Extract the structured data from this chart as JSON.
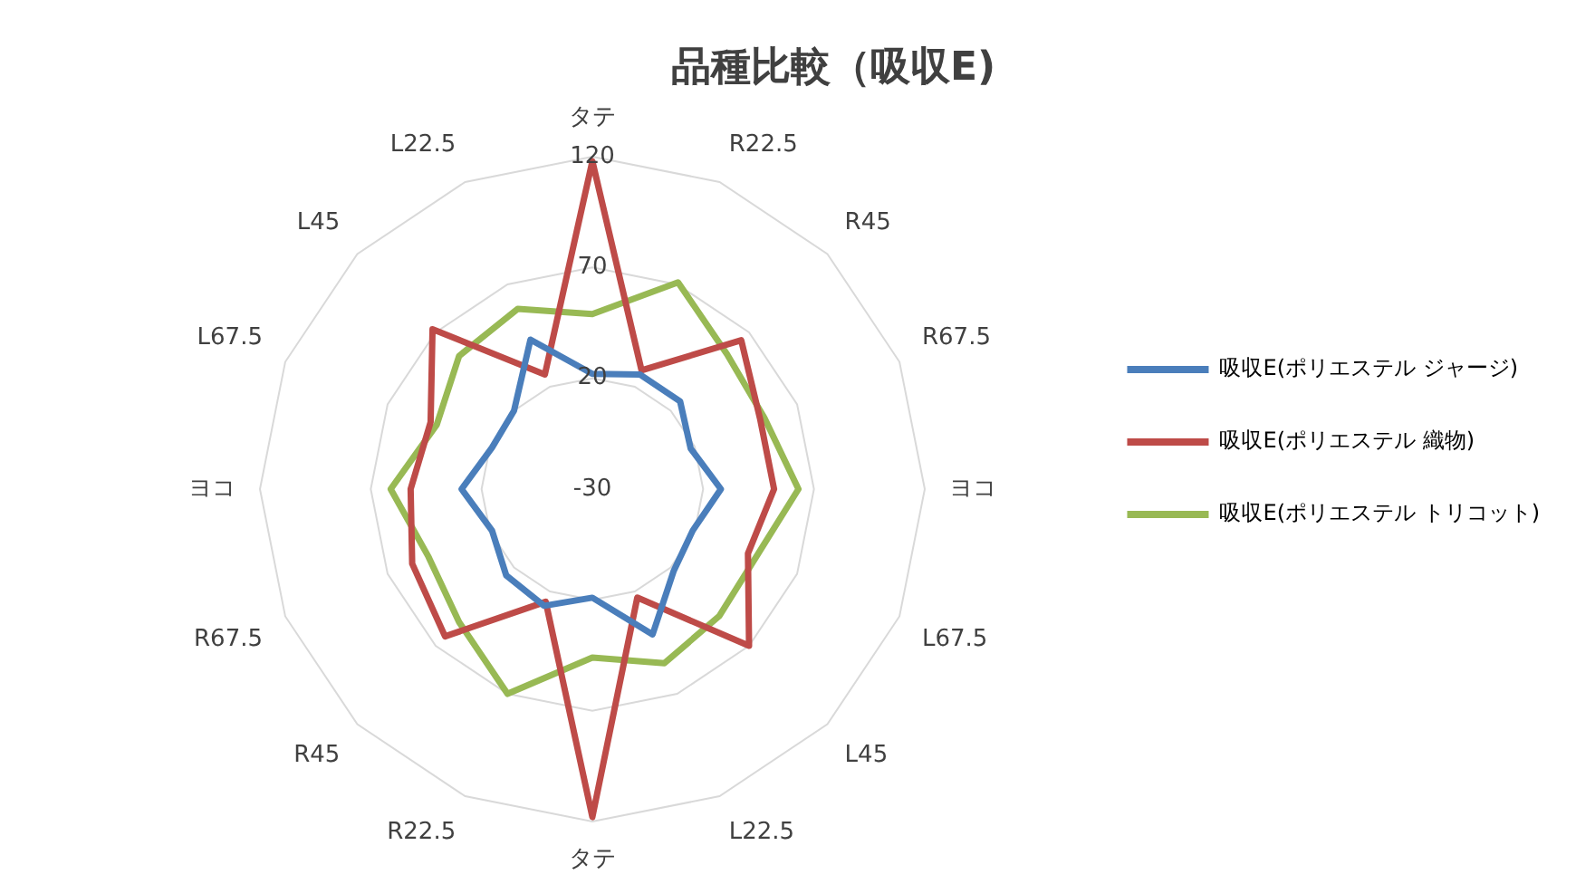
{
  "chart_data": {
    "type": "radar",
    "title": "品種比較（吸収E)",
    "categories": [
      "タテ",
      "R22.5",
      "R45",
      "R67.5",
      "ヨコ",
      "L67.5",
      "L45",
      "L22.5",
      "タテ",
      "R22.5",
      "R45",
      "R67.5",
      "ヨコ",
      "L67.5",
      "L45",
      "L22.5"
    ],
    "ylim": [
      -30,
      120
    ],
    "yticks": [
      -30,
      20,
      70,
      120
    ],
    "grid": true,
    "legend": "right",
    "marker": "none",
    "series": [
      {
        "name": "吸収E(ポリエステル ジャージ)",
        "color": "#4a7ebb",
        "values": [
          22,
          26,
          26,
          18,
          28,
          19,
          22,
          41,
          19,
          27,
          25,
          19,
          29,
          19,
          20,
          43
        ]
      },
      {
        "name": "吸収E(ポリエステル 織物)",
        "color": "#be4b48",
        "values": [
          118,
          28,
          65,
          52,
          52,
          46,
          70,
          23,
          118,
          25,
          64,
          58,
          52,
          49,
          72,
          26
        ]
      },
      {
        "name": "吸収E(ポリエステル トリコット)",
        "color": "#98b954",
        "values": [
          49,
          71,
          56,
          54,
          63,
          50,
          51,
          55,
          46,
          70,
          55,
          50,
          61,
          46,
          55,
          58
        ]
      }
    ]
  }
}
